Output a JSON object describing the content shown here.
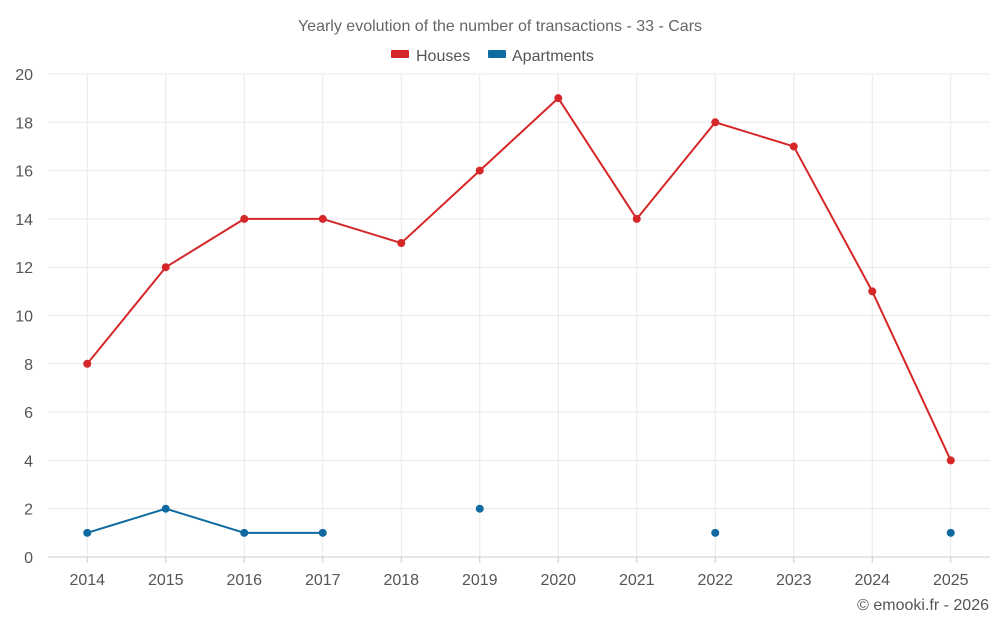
{
  "chart_data": {
    "type": "line",
    "title": "Yearly evolution of the number of transactions - 33 - Cars",
    "xlabel": "",
    "ylabel": "",
    "categories": [
      "2014",
      "2015",
      "2016",
      "2017",
      "2018",
      "2019",
      "2020",
      "2021",
      "2022",
      "2023",
      "2024",
      "2025"
    ],
    "ylim": [
      0,
      20
    ],
    "yticks": [
      0,
      2,
      4,
      6,
      8,
      10,
      12,
      14,
      16,
      18,
      20
    ],
    "grid": true,
    "legend_position": "top-center",
    "series": [
      {
        "name": "Houses",
        "color": "#d62728",
        "values": [
          8,
          12,
          14,
          14,
          13,
          16,
          19,
          14,
          18,
          17,
          11,
          4
        ]
      },
      {
        "name": "Apartments",
        "color": "#0e6aa0",
        "values": [
          1,
          2,
          1,
          1,
          null,
          2,
          null,
          null,
          1,
          null,
          null,
          1
        ]
      }
    ]
  },
  "credit": "© emooki.fr - 2026"
}
